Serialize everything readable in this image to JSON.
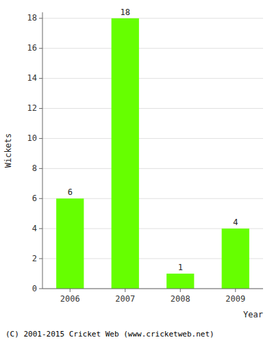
{
  "chart_data": {
    "type": "bar",
    "categories": [
      "2006",
      "2007",
      "2008",
      "2009"
    ],
    "values": [
      6,
      18,
      1,
      4
    ],
    "color": "#66ff00",
    "xlabel": "Year",
    "ylabel": "Wickets",
    "ylim": [
      0,
      18.4
    ],
    "yticks": [
      0,
      2,
      4,
      6,
      8,
      10,
      12,
      14,
      16,
      18
    ],
    "grid": true,
    "data_labels": true,
    "annotations": [
      "(C) 2001-2015 Cricket Web (www.cricketweb.net)"
    ]
  }
}
